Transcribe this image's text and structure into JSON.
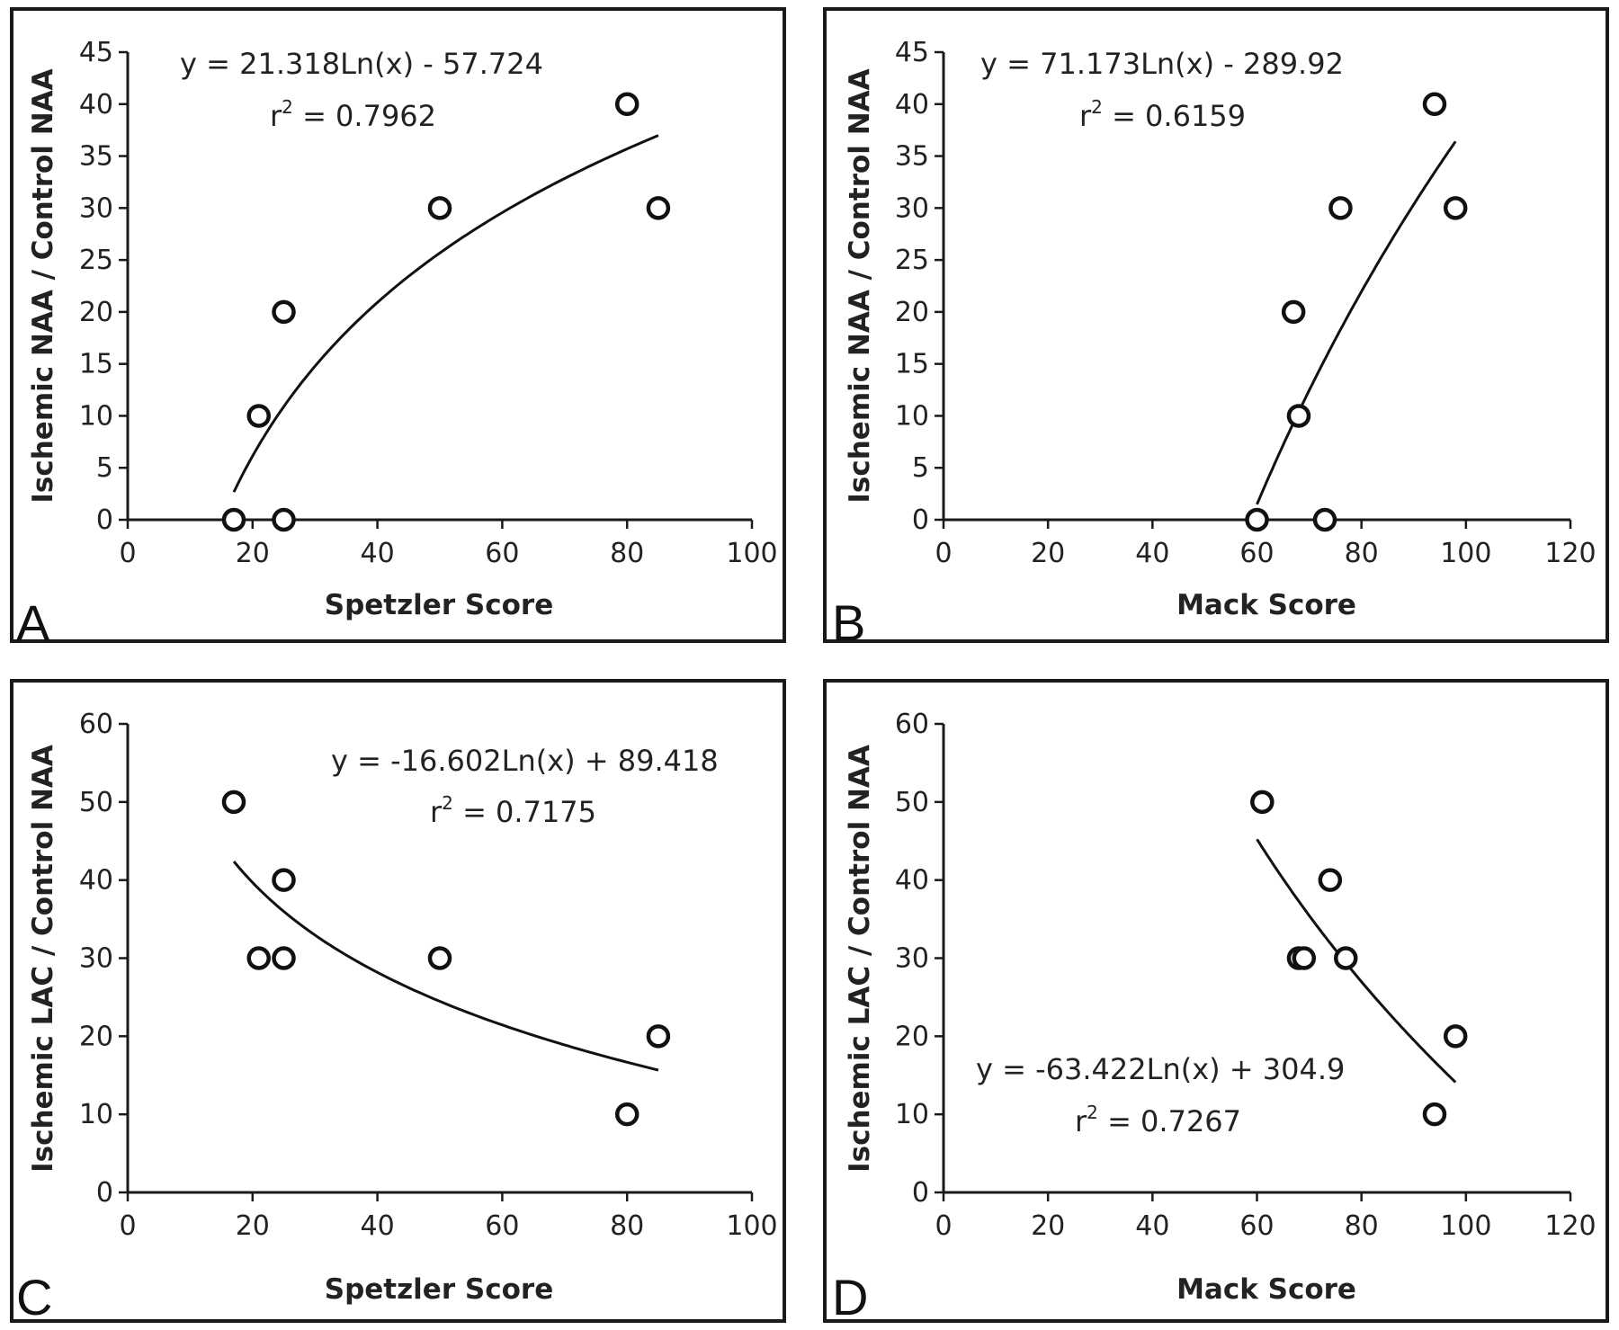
{
  "chart_data": [
    {
      "type": "scatter",
      "panel_letter": "A",
      "xlabel": "Spetzler Score",
      "ylabel": "Ischemic NAA / Control NAA",
      "xlim": [
        0,
        100
      ],
      "ylim": [
        0,
        45
      ],
      "xticks": [
        0,
        20,
        40,
        60,
        80,
        100
      ],
      "yticks": [
        0,
        5,
        10,
        15,
        20,
        25,
        30,
        35,
        40,
        45
      ],
      "points": [
        [
          17,
          0
        ],
        [
          21,
          10
        ],
        [
          25,
          20
        ],
        [
          25,
          0
        ],
        [
          50,
          30
        ],
        [
          80,
          40
        ],
        [
          85,
          30
        ]
      ],
      "trendline": {
        "type": "log",
        "a": 21.318,
        "b": -57.724,
        "x_range": [
          17,
          85
        ]
      },
      "equation": "y = 21.318Ln(x) - 57.724",
      "r2_prefix": "r",
      "r2_exp": "2",
      "r2_value": " = 0.7962",
      "legend": "none",
      "grid": false
    },
    {
      "type": "scatter",
      "panel_letter": "B",
      "xlabel": "Mack Score",
      "ylabel": "Ischemic NAA / Control NAA",
      "xlim": [
        0,
        120
      ],
      "ylim": [
        0,
        45
      ],
      "xticks": [
        0,
        20,
        40,
        60,
        80,
        100,
        120
      ],
      "yticks": [
        0,
        5,
        10,
        15,
        20,
        25,
        30,
        35,
        40,
        45
      ],
      "points": [
        [
          60,
          0
        ],
        [
          67,
          20
        ],
        [
          68,
          10
        ],
        [
          73,
          0
        ],
        [
          76,
          30
        ],
        [
          94,
          40
        ],
        [
          98,
          30
        ]
      ],
      "trendline": {
        "type": "log",
        "a": 71.173,
        "b": -289.92,
        "x_range": [
          60,
          98
        ]
      },
      "equation": "y = 71.173Ln(x) - 289.92",
      "r2_prefix": "r",
      "r2_exp": "2",
      "r2_value": " = 0.6159",
      "legend": "none",
      "grid": false
    },
    {
      "type": "scatter",
      "panel_letter": "C",
      "xlabel": "Spetzler Score",
      "ylabel": "Ischemic LAC / Control NAA",
      "xlim": [
        0,
        100
      ],
      "ylim": [
        0,
        60
      ],
      "xticks": [
        0,
        20,
        40,
        60,
        80,
        100
      ],
      "yticks": [
        0,
        10,
        20,
        30,
        40,
        50,
        60
      ],
      "points": [
        [
          17,
          50
        ],
        [
          21,
          30
        ],
        [
          25,
          40
        ],
        [
          25,
          30
        ],
        [
          50,
          30
        ],
        [
          80,
          10
        ],
        [
          85,
          20
        ]
      ],
      "trendline": {
        "type": "log",
        "a": -16.602,
        "b": 89.418,
        "x_range": [
          17,
          85
        ]
      },
      "equation": "y = -16.602Ln(x) + 89.418",
      "r2_prefix": "r",
      "r2_exp": "2",
      "r2_value": " = 0.7175",
      "legend": "none",
      "grid": false
    },
    {
      "type": "scatter",
      "panel_letter": "D",
      "xlabel": "Mack Score",
      "ylabel": "Ischemic LAC / Control NAA",
      "xlim": [
        0,
        120
      ],
      "ylim": [
        0,
        60
      ],
      "xticks": [
        0,
        20,
        40,
        60,
        80,
        100,
        120
      ],
      "yticks": [
        0,
        10,
        20,
        30,
        40,
        50,
        60
      ],
      "points": [
        [
          61,
          50
        ],
        [
          68,
          30
        ],
        [
          69,
          30
        ],
        [
          74,
          40
        ],
        [
          77,
          30
        ],
        [
          94,
          10
        ],
        [
          98,
          20
        ]
      ],
      "trendline": {
        "type": "log",
        "a": -63.422,
        "b": 304.9,
        "x_range": [
          60,
          98
        ]
      },
      "equation": "y = -63.422Ln(x) + 304.9",
      "r2_prefix": "r",
      "r2_exp": "2",
      "r2_value": " = 0.7267",
      "legend": "none",
      "grid": false
    }
  ]
}
